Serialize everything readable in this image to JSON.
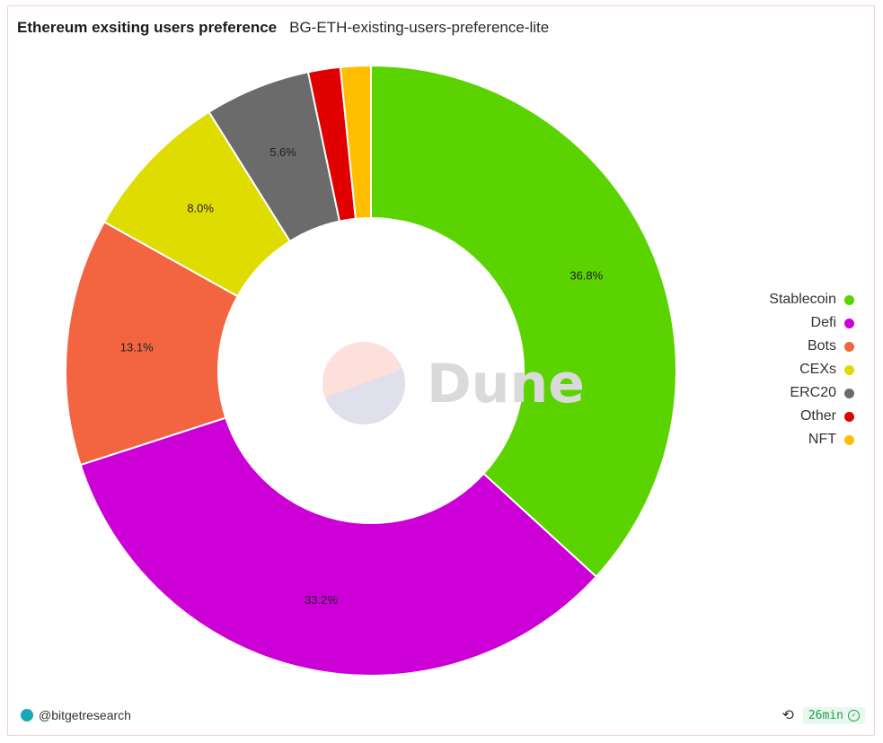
{
  "header": {
    "title": "Ethereum exsiting users preference",
    "subtitle": "BG-ETH-existing-users-preference-lite"
  },
  "chart_data": {
    "type": "pie",
    "donut": true,
    "categories": [
      "Stablecoin",
      "Defi",
      "Bots",
      "CEXs",
      "ERC20",
      "Other",
      "NFT"
    ],
    "values": [
      36.8,
      33.2,
      13.1,
      8.0,
      5.6,
      1.7,
      1.6
    ],
    "labels": [
      "36.8%",
      "33.2%",
      "13.1%",
      "8.0%",
      "5.6%",
      "",
      ""
    ],
    "colors": [
      "#5bd300",
      "#cc00d6",
      "#f26540",
      "#dedc00",
      "#6b6b6b",
      "#e00000",
      "#ffbf00"
    ],
    "legend": "right"
  },
  "watermark": {
    "text": "Dune"
  },
  "footer": {
    "author": "@bitgetresearch",
    "refresh_icon": "refresh-icon",
    "age": "26min"
  }
}
